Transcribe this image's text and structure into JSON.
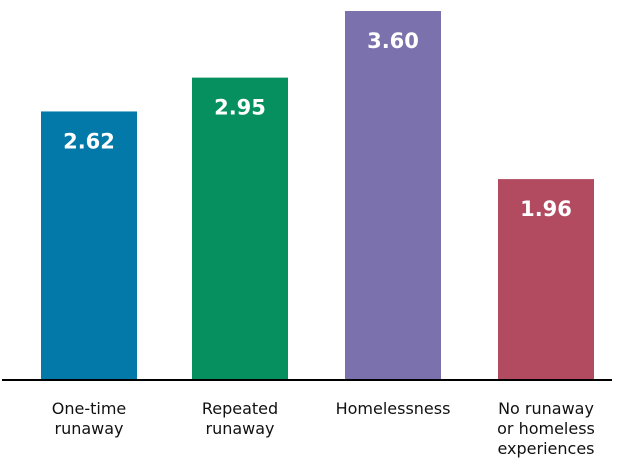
{
  "chart_data": {
    "type": "bar",
    "categories": [
      [
        "One-time",
        "runaway"
      ],
      [
        "Repeated",
        "runaway"
      ],
      [
        "Homelessness"
      ],
      [
        "No runaway",
        "or homeless",
        "experiences"
      ]
    ],
    "values": [
      2.62,
      2.95,
      3.6,
      1.96
    ],
    "value_labels": [
      "2.62",
      "2.95",
      "3.60",
      "1.96"
    ],
    "colors": [
      "#0279A8",
      "#06905F",
      "#7B72AD",
      "#B24A60"
    ],
    "axis_color": "#000000",
    "title": "",
    "xlabel": "",
    "ylabel": "",
    "ylim": [
      0,
      3.6
    ],
    "grid": false,
    "legend": "none"
  }
}
